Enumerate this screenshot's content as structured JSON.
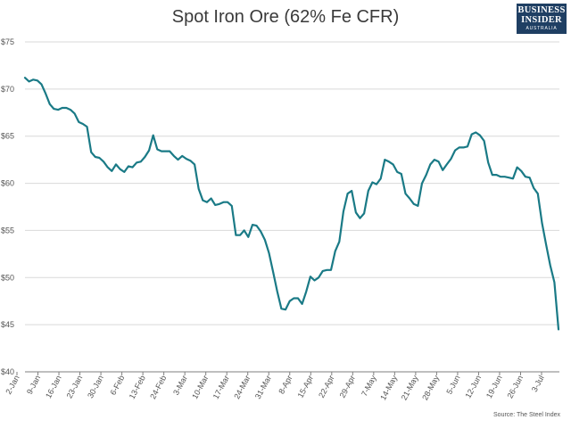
{
  "logo": {
    "line1": "BUSINESS",
    "line2": "INSIDER",
    "line3": "AUSTRALIA"
  },
  "source": "Source: The Steel Index",
  "colors": {
    "line": "#1a7a86",
    "grid": "#d9d9d9",
    "axis": "#7f7f7f",
    "text": "#555555"
  },
  "chart_data": {
    "type": "line",
    "title": "Spot Iron Ore (62% Fe CFR)",
    "xlabel": "",
    "ylabel": "",
    "ylim": [
      40,
      75
    ],
    "yticks": [
      "$40",
      "$45",
      "$50",
      "$55",
      "$60",
      "$65",
      "$70",
      "$75"
    ],
    "grid": "horizontal",
    "legend": "none",
    "xticks": [
      "2-Jan",
      "9-Jan",
      "16-Jan",
      "23-Jan",
      "30-Jan",
      "6-Feb",
      "13-Feb",
      "24-Feb",
      "3-Mar",
      "10-Mar",
      "17-Mar",
      "24-Mar",
      "31-Mar",
      "8-Apr",
      "15-Apr",
      "22-Apr",
      "29-Apr",
      "7-May",
      "14-May",
      "21-May",
      "28-May",
      "5-Jun",
      "12-Jun",
      "19-Jun",
      "26-Jun",
      "3-Jul"
    ],
    "values": [
      71.2,
      70.8,
      71.0,
      70.9,
      70.5,
      69.5,
      68.4,
      67.9,
      67.8,
      68.0,
      68.0,
      67.8,
      67.4,
      66.5,
      66.3,
      66.0,
      63.3,
      62.8,
      62.7,
      62.3,
      61.7,
      61.3,
      62.0,
      61.5,
      61.2,
      61.8,
      61.7,
      62.2,
      62.3,
      62.8,
      63.5,
      65.1,
      63.6,
      63.4,
      63.4,
      63.4,
      62.9,
      62.5,
      62.9,
      62.6,
      62.4,
      62.0,
      59.4,
      58.2,
      58.0,
      58.4,
      57.7,
      57.8,
      58.0,
      58.0,
      57.6,
      54.5,
      54.5,
      55.0,
      54.3,
      55.6,
      55.5,
      54.9,
      54.0,
      52.6,
      50.6,
      48.5,
      46.7,
      46.6,
      47.5,
      47.8,
      47.8,
      47.2,
      48.5,
      50.1,
      49.7,
      50.0,
      50.7,
      50.8,
      50.8,
      52.8,
      53.8,
      57.0,
      58.9,
      59.2,
      56.9,
      56.3,
      56.8,
      59.2,
      60.1,
      59.9,
      60.5,
      62.5,
      62.3,
      62.0,
      61.2,
      61.0,
      58.9,
      58.4,
      57.8,
      57.6,
      60.0,
      60.9,
      62.0,
      62.5,
      62.3,
      61.4,
      62.0,
      62.6,
      63.5,
      63.8,
      63.8,
      63.9,
      65.2,
      65.4,
      65.1,
      64.5,
      62.2,
      60.9,
      60.9,
      60.7,
      60.7,
      60.6,
      60.5,
      61.7,
      61.3,
      60.7,
      60.6,
      59.5,
      58.9,
      55.8,
      53.5,
      51.3,
      49.5,
      44.5
    ]
  }
}
